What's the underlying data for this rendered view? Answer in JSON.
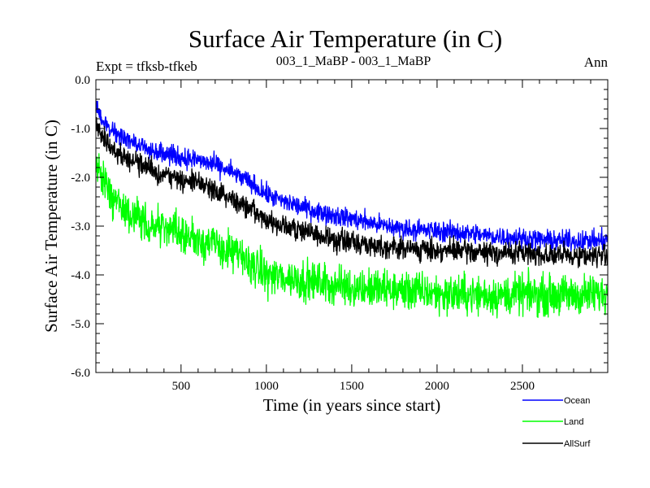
{
  "chart_data": {
    "type": "line",
    "title": "Surface Air Temperature (in C)",
    "left_label": "Expt = tfksb-tfkeb",
    "center_label": "003_1_MaBP - 003_1_MaBP",
    "right_label": "Ann",
    "xlabel": "Time (in years since start)",
    "ylabel": "Surface Air Temperature (in C)",
    "xlim": [
      1,
      3000
    ],
    "ylim": [
      -6.0,
      0.0
    ],
    "xticks": [
      500,
      1000,
      1500,
      2000,
      2500
    ],
    "xtick_labels": [
      "500",
      "1000",
      "1500",
      "2000",
      "2500"
    ],
    "yticks": [
      0,
      -1,
      -2,
      -3,
      -4,
      -5,
      -6
    ],
    "ytick_labels": [
      "0.0",
      "-1.0",
      "-2.0",
      "-3.0",
      "-4.0",
      "-5.0",
      "-6.0"
    ],
    "series": [
      {
        "name": "Ocean",
        "color": "#0000ff",
        "x": [
          1,
          50,
          100,
          200,
          300,
          400,
          500,
          600,
          700,
          800,
          900,
          1000,
          1100,
          1200,
          1300,
          1400,
          1500,
          1600,
          1700,
          1800,
          1900,
          2000,
          2100,
          2200,
          2300,
          2400,
          2500,
          2600,
          2700,
          2800,
          2900,
          3000
        ],
        "values": [
          -0.5,
          -0.9,
          -1.05,
          -1.25,
          -1.4,
          -1.5,
          -1.6,
          -1.65,
          -1.75,
          -1.9,
          -2.1,
          -2.35,
          -2.5,
          -2.6,
          -2.7,
          -2.78,
          -2.85,
          -2.92,
          -3.0,
          -3.05,
          -3.08,
          -3.1,
          -3.12,
          -3.15,
          -3.2,
          -3.22,
          -3.25,
          -3.28,
          -3.3,
          -3.3,
          -3.3,
          -3.3
        ],
        "noise": 0.1
      },
      {
        "name": "Land",
        "color": "#00ff00",
        "x": [
          1,
          50,
          100,
          200,
          300,
          400,
          500,
          600,
          700,
          800,
          900,
          1000,
          1100,
          1200,
          1300,
          1400,
          1500,
          1600,
          1700,
          1800,
          1900,
          2000,
          2100,
          2200,
          2300,
          2400,
          2500,
          2600,
          2700,
          2800,
          2900,
          3000
        ],
        "values": [
          -1.8,
          -2.1,
          -2.45,
          -2.75,
          -2.95,
          -3.05,
          -3.15,
          -3.25,
          -3.4,
          -3.55,
          -3.75,
          -4.0,
          -4.05,
          -4.1,
          -4.15,
          -4.2,
          -4.25,
          -4.28,
          -4.3,
          -4.32,
          -4.35,
          -4.38,
          -4.4,
          -4.4,
          -4.42,
          -4.42,
          -4.4,
          -4.4,
          -4.42,
          -4.42,
          -4.4,
          -4.4
        ],
        "noise": 0.2
      },
      {
        "name": "AllSurf",
        "color": "#000000",
        "x": [
          1,
          50,
          100,
          200,
          300,
          400,
          500,
          600,
          700,
          800,
          900,
          1000,
          1100,
          1200,
          1300,
          1400,
          1500,
          1600,
          1700,
          1800,
          1900,
          2000,
          2100,
          2200,
          2300,
          2400,
          2500,
          2600,
          2700,
          2800,
          2900,
          3000
        ],
        "values": [
          -0.9,
          -1.2,
          -1.4,
          -1.65,
          -1.8,
          -1.95,
          -2.05,
          -2.1,
          -2.25,
          -2.45,
          -2.65,
          -2.9,
          -3.0,
          -3.1,
          -3.2,
          -3.28,
          -3.32,
          -3.38,
          -3.42,
          -3.45,
          -3.48,
          -3.5,
          -3.5,
          -3.52,
          -3.55,
          -3.55,
          -3.55,
          -3.58,
          -3.6,
          -3.6,
          -3.6,
          -3.6
        ],
        "noise": 0.11
      }
    ]
  }
}
